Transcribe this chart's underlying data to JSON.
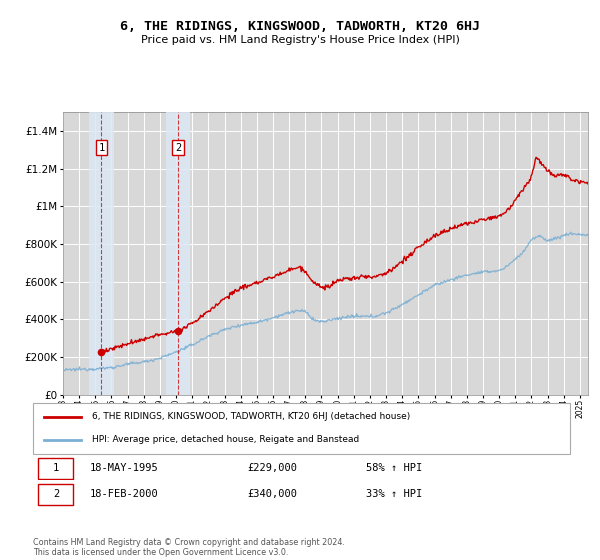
{
  "title": "6, THE RIDINGS, KINGSWOOD, TADWORTH, KT20 6HJ",
  "subtitle": "Price paid vs. HM Land Registry's House Price Index (HPI)",
  "background_color": "#ffffff",
  "plot_bg_color": "#d8d8d8",
  "grid_color": "#ffffff",
  "transactions": [
    {
      "date_str": "18-MAY-1995",
      "date_num": 1995.38,
      "price": 229000,
      "label": "1",
      "pct": "58% ↑ HPI"
    },
    {
      "date_str": "18-FEB-2000",
      "date_num": 2000.13,
      "price": 340000,
      "label": "2",
      "pct": "33% ↑ HPI"
    }
  ],
  "legend_line1": "6, THE RIDINGS, KINGSWOOD, TADWORTH, KT20 6HJ (detached house)",
  "legend_line2": "HPI: Average price, detached house, Reigate and Banstead",
  "footer": "Contains HM Land Registry data © Crown copyright and database right 2024.\nThis data is licensed under the Open Government Licence v3.0.",
  "red_color": "#cc0000",
  "blue_color": "#7bafd4",
  "ylim": [
    0,
    1500000
  ],
  "xlim": [
    1993.0,
    2025.5
  ],
  "yticks": [
    0,
    200000,
    400000,
    600000,
    800000,
    1000000,
    1200000,
    1400000
  ],
  "ytick_labels": [
    "£0",
    "£200K",
    "£400K",
    "£600K",
    "£800K",
    "£1M",
    "£1.2M",
    "£1.4M"
  ],
  "xticks": [
    1993,
    1994,
    1995,
    1996,
    1997,
    1998,
    1999,
    2000,
    2001,
    2002,
    2003,
    2004,
    2005,
    2006,
    2007,
    2008,
    2009,
    2010,
    2011,
    2012,
    2013,
    2014,
    2015,
    2016,
    2017,
    2018,
    2019,
    2020,
    2021,
    2022,
    2023,
    2024,
    2025
  ],
  "hatch_color": "#bbbbbb",
  "span_color": "#dce8f5",
  "span_alpha": 0.85
}
